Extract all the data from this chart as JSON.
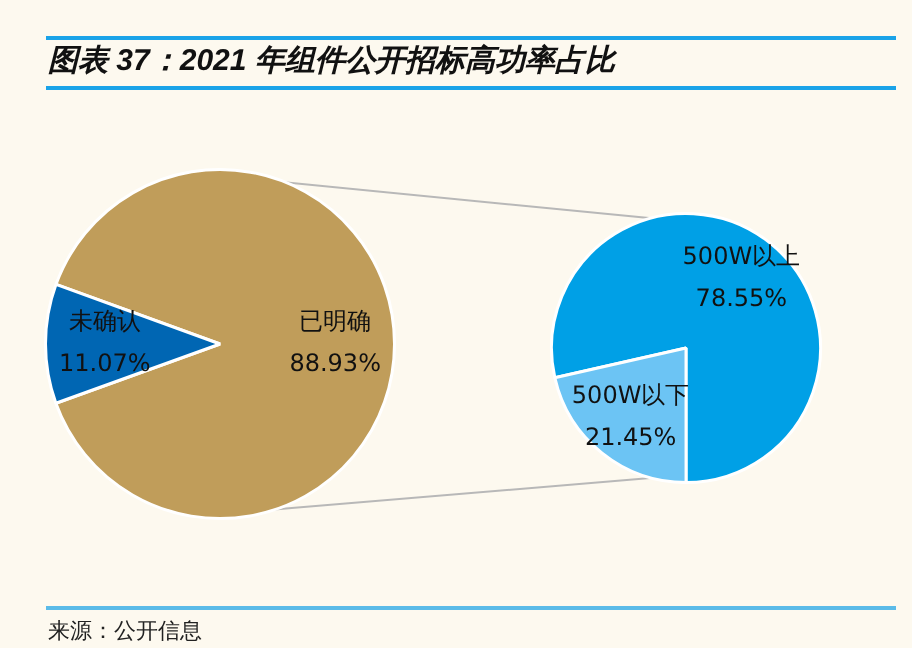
{
  "chart_data": [
    {
      "type": "pie",
      "title": "图表 37：2021 年组件公开招标高功率占比",
      "categories": [
        "已明确",
        "未确认"
      ],
      "values": [
        88.93,
        11.07
      ],
      "colors": [
        "#c09d5a",
        "#0066b3"
      ],
      "value_labels": [
        "88.93%",
        "11.07%"
      ],
      "annotations": [
        "来源：公开信息"
      ]
    },
    {
      "type": "pie",
      "categories": [
        "500W以上",
        "500W以下"
      ],
      "values": [
        78.55,
        21.45
      ],
      "colors": [
        "#00a0e6",
        "#6cc4f4"
      ],
      "value_labels": [
        "78.55%",
        "21.45%"
      ]
    }
  ]
}
